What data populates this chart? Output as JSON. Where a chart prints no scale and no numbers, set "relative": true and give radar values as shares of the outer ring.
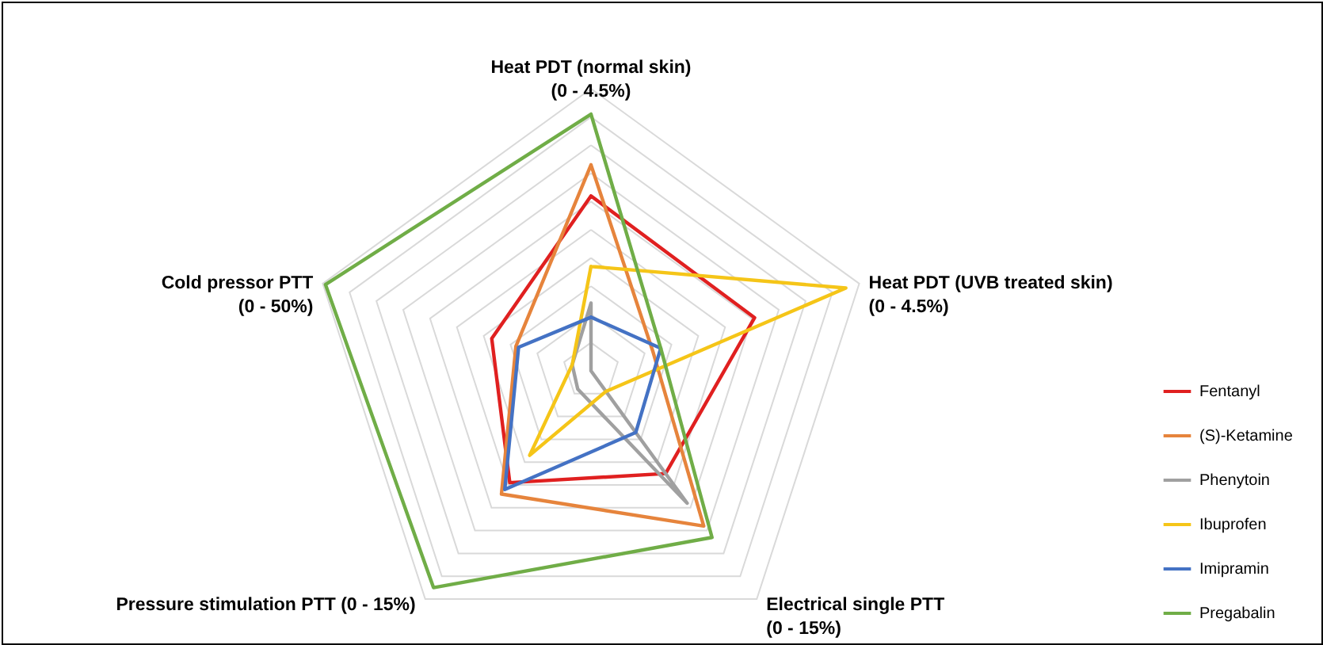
{
  "chart_data": {
    "type": "radar",
    "relative": true,
    "grid": true,
    "legend": "right",
    "categories": [
      "Heat PDT  (normal skin)\n(0 - 4.5%)",
      "Heat PDT (UVB treated skin)\n(0 - 4.5%)",
      "Electrical single PTT\n(0 - 15%)",
      "Pressure stimulation PTT (0 - 15%)",
      "Cold pressor PTT\n(0 - 50%)"
    ],
    "series": [
      {
        "name": "Fentanyl",
        "color": "#e02020",
        "values": [
          0.62,
          0.61,
          0.45,
          0.49,
          0.37
        ]
      },
      {
        "name": "(S)-Ketamine",
        "color": "#e6843c",
        "values": [
          0.73,
          0.23,
          0.68,
          0.54,
          0.28
        ]
      },
      {
        "name": "Phenytoin",
        "color": "#a0a0a0",
        "values": [
          0.24,
          0,
          0.58,
          0.08,
          0.07
        ]
      },
      {
        "name": "Ibuprofen",
        "color": "#f5c518",
        "values": [
          0.37,
          0.95,
          0.09,
          0.37,
          0.07
        ]
      },
      {
        "name": "Imipramin",
        "color": "#4472c4",
        "values": [
          0.19,
          0.26,
          0.27,
          0.52,
          0.27
        ]
      },
      {
        "name": "Pregabalin",
        "color": "#70ad47",
        "values": [
          0.91,
          0.26,
          0.73,
          0.95,
          0.99
        ]
      }
    ]
  }
}
